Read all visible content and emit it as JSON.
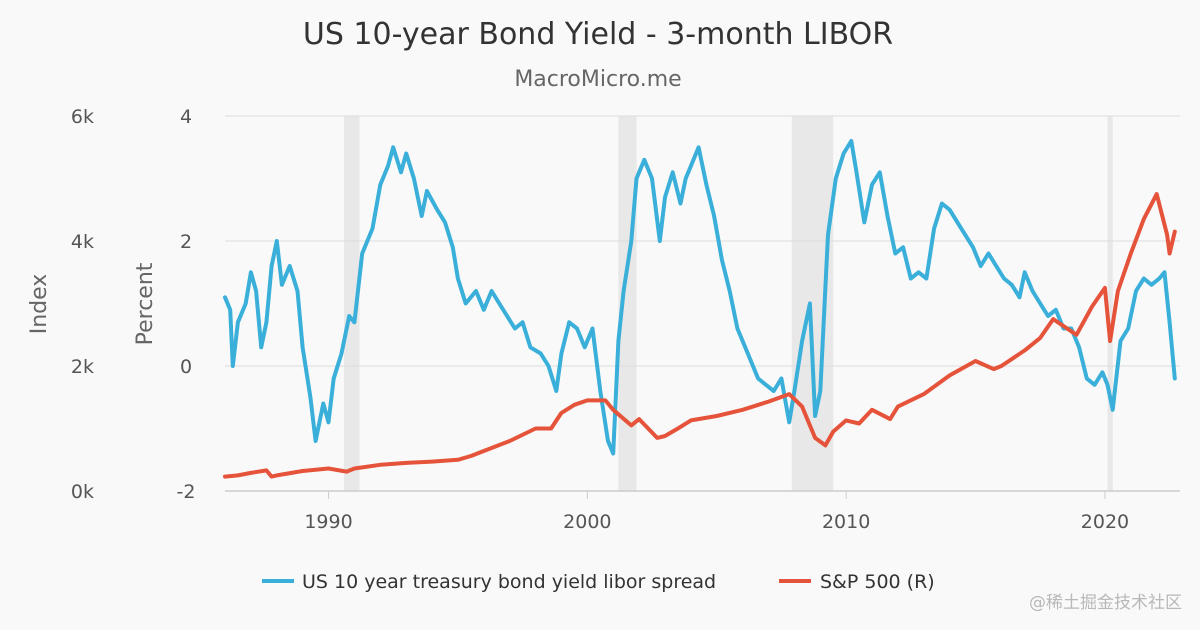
{
  "chart_data": {
    "type": "line",
    "title": "US 10-year Bond Yield - 3-month LIBOR",
    "subtitle": "MacroMicro.me",
    "x_axis": {
      "range": [
        1986.0,
        2022.9
      ],
      "ticks": [
        1990,
        2000,
        2010,
        2020
      ],
      "tick_labels": [
        "1990",
        "2000",
        "2010",
        "2020"
      ]
    },
    "y_axes": [
      {
        "id": "left",
        "label": "Percent",
        "range": [
          -2,
          4
        ],
        "ticks": [
          -2,
          0,
          2,
          4
        ],
        "tick_labels": [
          "-2",
          "0",
          "2",
          "4"
        ]
      },
      {
        "id": "right",
        "label": "Index",
        "range": [
          0,
          6000
        ],
        "ticks": [
          0,
          2000,
          4000,
          6000
        ],
        "tick_labels": [
          "0k",
          "2k",
          "4k",
          "6k"
        ]
      }
    ],
    "grid": true,
    "legend_position": "bottom",
    "recession_shading": [
      [
        1990.6,
        1991.2
      ],
      [
        2001.2,
        2001.9
      ],
      [
        2007.9,
        2009.5
      ],
      [
        2020.1,
        2020.3
      ]
    ],
    "series": [
      {
        "name": "US 10 year treasury bond yield libor spread",
        "axis": "left",
        "color": "#3aafd9",
        "points": [
          [
            1986.0,
            1.1
          ],
          [
            1986.2,
            0.9
          ],
          [
            1986.3,
            0.0
          ],
          [
            1986.5,
            0.7
          ],
          [
            1986.8,
            1.0
          ],
          [
            1987.0,
            1.5
          ],
          [
            1987.2,
            1.2
          ],
          [
            1987.4,
            0.3
          ],
          [
            1987.6,
            0.7
          ],
          [
            1987.8,
            1.6
          ],
          [
            1988.0,
            2.0
          ],
          [
            1988.2,
            1.3
          ],
          [
            1988.5,
            1.6
          ],
          [
            1988.8,
            1.2
          ],
          [
            1989.0,
            0.3
          ],
          [
            1989.3,
            -0.5
          ],
          [
            1989.5,
            -1.2
          ],
          [
            1989.8,
            -0.6
          ],
          [
            1990.0,
            -0.9
          ],
          [
            1990.2,
            -0.2
          ],
          [
            1990.5,
            0.2
          ],
          [
            1990.8,
            0.8
          ],
          [
            1991.0,
            0.7
          ],
          [
            1991.3,
            1.8
          ],
          [
            1991.7,
            2.2
          ],
          [
            1992.0,
            2.9
          ],
          [
            1992.3,
            3.2
          ],
          [
            1992.5,
            3.5
          ],
          [
            1992.8,
            3.1
          ],
          [
            1993.0,
            3.4
          ],
          [
            1993.3,
            3.0
          ],
          [
            1993.6,
            2.4
          ],
          [
            1993.8,
            2.8
          ],
          [
            1994.2,
            2.5
          ],
          [
            1994.5,
            2.3
          ],
          [
            1994.8,
            1.9
          ],
          [
            1995.0,
            1.4
          ],
          [
            1995.3,
            1.0
          ],
          [
            1995.7,
            1.2
          ],
          [
            1996.0,
            0.9
          ],
          [
            1996.3,
            1.2
          ],
          [
            1996.6,
            1.0
          ],
          [
            1996.9,
            0.8
          ],
          [
            1997.2,
            0.6
          ],
          [
            1997.5,
            0.7
          ],
          [
            1997.8,
            0.3
          ],
          [
            1998.2,
            0.2
          ],
          [
            1998.5,
            0.0
          ],
          [
            1998.8,
            -0.4
          ],
          [
            1999.0,
            0.2
          ],
          [
            1999.3,
            0.7
          ],
          [
            1999.6,
            0.6
          ],
          [
            1999.9,
            0.3
          ],
          [
            2000.2,
            0.6
          ],
          [
            2000.5,
            -0.4
          ],
          [
            2000.8,
            -1.2
          ],
          [
            2001.0,
            -1.4
          ],
          [
            2001.2,
            0.4
          ],
          [
            2001.4,
            1.2
          ],
          [
            2001.7,
            2.0
          ],
          [
            2001.9,
            3.0
          ],
          [
            2002.2,
            3.3
          ],
          [
            2002.5,
            3.0
          ],
          [
            2002.8,
            2.0
          ],
          [
            2003.0,
            2.7
          ],
          [
            2003.3,
            3.1
          ],
          [
            2003.6,
            2.6
          ],
          [
            2003.8,
            3.0
          ],
          [
            2004.0,
            3.2
          ],
          [
            2004.3,
            3.5
          ],
          [
            2004.6,
            2.9
          ],
          [
            2004.9,
            2.4
          ],
          [
            2005.2,
            1.7
          ],
          [
            2005.5,
            1.2
          ],
          [
            2005.8,
            0.6
          ],
          [
            2006.2,
            0.2
          ],
          [
            2006.6,
            -0.2
          ],
          [
            2006.9,
            -0.3
          ],
          [
            2007.2,
            -0.4
          ],
          [
            2007.5,
            -0.2
          ],
          [
            2007.8,
            -0.9
          ],
          [
            2008.0,
            -0.4
          ],
          [
            2008.3,
            0.4
          ],
          [
            2008.6,
            1.0
          ],
          [
            2008.8,
            -0.8
          ],
          [
            2009.0,
            -0.4
          ],
          [
            2009.3,
            2.1
          ],
          [
            2009.6,
            3.0
          ],
          [
            2009.9,
            3.4
          ],
          [
            2010.2,
            3.6
          ],
          [
            2010.4,
            3.1
          ],
          [
            2010.7,
            2.3
          ],
          [
            2011.0,
            2.9
          ],
          [
            2011.3,
            3.1
          ],
          [
            2011.6,
            2.4
          ],
          [
            2011.9,
            1.8
          ],
          [
            2012.2,
            1.9
          ],
          [
            2012.5,
            1.4
          ],
          [
            2012.8,
            1.5
          ],
          [
            2013.1,
            1.4
          ],
          [
            2013.4,
            2.2
          ],
          [
            2013.7,
            2.6
          ],
          [
            2014.0,
            2.5
          ],
          [
            2014.3,
            2.3
          ],
          [
            2014.6,
            2.1
          ],
          [
            2014.9,
            1.9
          ],
          [
            2015.2,
            1.6
          ],
          [
            2015.5,
            1.8
          ],
          [
            2015.8,
            1.6
          ],
          [
            2016.1,
            1.4
          ],
          [
            2016.4,
            1.3
          ],
          [
            2016.7,
            1.1
          ],
          [
            2016.9,
            1.5
          ],
          [
            2017.2,
            1.2
          ],
          [
            2017.5,
            1.0
          ],
          [
            2017.8,
            0.8
          ],
          [
            2018.1,
            0.9
          ],
          [
            2018.4,
            0.6
          ],
          [
            2018.7,
            0.6
          ],
          [
            2019.0,
            0.3
          ],
          [
            2019.3,
            -0.2
          ],
          [
            2019.6,
            -0.3
          ],
          [
            2019.9,
            -0.1
          ],
          [
            2020.1,
            -0.3
          ],
          [
            2020.3,
            -0.7
          ],
          [
            2020.6,
            0.4
          ],
          [
            2020.9,
            0.6
          ],
          [
            2021.2,
            1.2
          ],
          [
            2021.5,
            1.4
          ],
          [
            2021.8,
            1.3
          ],
          [
            2022.1,
            1.4
          ],
          [
            2022.3,
            1.5
          ],
          [
            2022.5,
            0.7
          ],
          [
            2022.7,
            -0.2
          ]
        ]
      },
      {
        "name": "S&P 500 (R)",
        "axis": "right",
        "color": "#e5533a",
        "points": [
          [
            1986.0,
            230
          ],
          [
            1986.5,
            250
          ],
          [
            1987.0,
            290
          ],
          [
            1987.6,
            330
          ],
          [
            1987.8,
            230
          ],
          [
            1988.0,
            250
          ],
          [
            1989.0,
            320
          ],
          [
            1990.0,
            360
          ],
          [
            1990.7,
            310
          ],
          [
            1991.0,
            360
          ],
          [
            1992.0,
            420
          ],
          [
            1993.0,
            450
          ],
          [
            1994.0,
            470
          ],
          [
            1995.0,
            500
          ],
          [
            1995.5,
            560
          ],
          [
            1996.0,
            640
          ],
          [
            1997.0,
            800
          ],
          [
            1998.0,
            1000
          ],
          [
            1998.6,
            1000
          ],
          [
            1999.0,
            1250
          ],
          [
            1999.5,
            1380
          ],
          [
            2000.0,
            1450
          ],
          [
            2000.7,
            1450
          ],
          [
            2001.0,
            1300
          ],
          [
            2001.7,
            1050
          ],
          [
            2002.0,
            1150
          ],
          [
            2002.7,
            850
          ],
          [
            2003.0,
            880
          ],
          [
            2003.5,
            1000
          ],
          [
            2004.0,
            1130
          ],
          [
            2005.0,
            1200
          ],
          [
            2006.0,
            1300
          ],
          [
            2007.0,
            1430
          ],
          [
            2007.8,
            1550
          ],
          [
            2008.3,
            1350
          ],
          [
            2008.8,
            850
          ],
          [
            2009.2,
            730
          ],
          [
            2009.5,
            950
          ],
          [
            2010.0,
            1130
          ],
          [
            2010.5,
            1080
          ],
          [
            2011.0,
            1300
          ],
          [
            2011.7,
            1150
          ],
          [
            2012.0,
            1350
          ],
          [
            2013.0,
            1550
          ],
          [
            2014.0,
            1850
          ],
          [
            2015.0,
            2080
          ],
          [
            2015.7,
            1950
          ],
          [
            2016.0,
            2000
          ],
          [
            2016.9,
            2250
          ],
          [
            2017.5,
            2450
          ],
          [
            2018.0,
            2750
          ],
          [
            2018.9,
            2500
          ],
          [
            2019.5,
            2950
          ],
          [
            2020.0,
            3250
          ],
          [
            2020.2,
            2400
          ],
          [
            2020.5,
            3200
          ],
          [
            2021.0,
            3800
          ],
          [
            2021.5,
            4350
          ],
          [
            2022.0,
            4750
          ],
          [
            2022.4,
            4100
          ],
          [
            2022.5,
            3800
          ],
          [
            2022.7,
            4150
          ]
        ]
      }
    ]
  },
  "watermark": "@稀土掘金技术社区"
}
